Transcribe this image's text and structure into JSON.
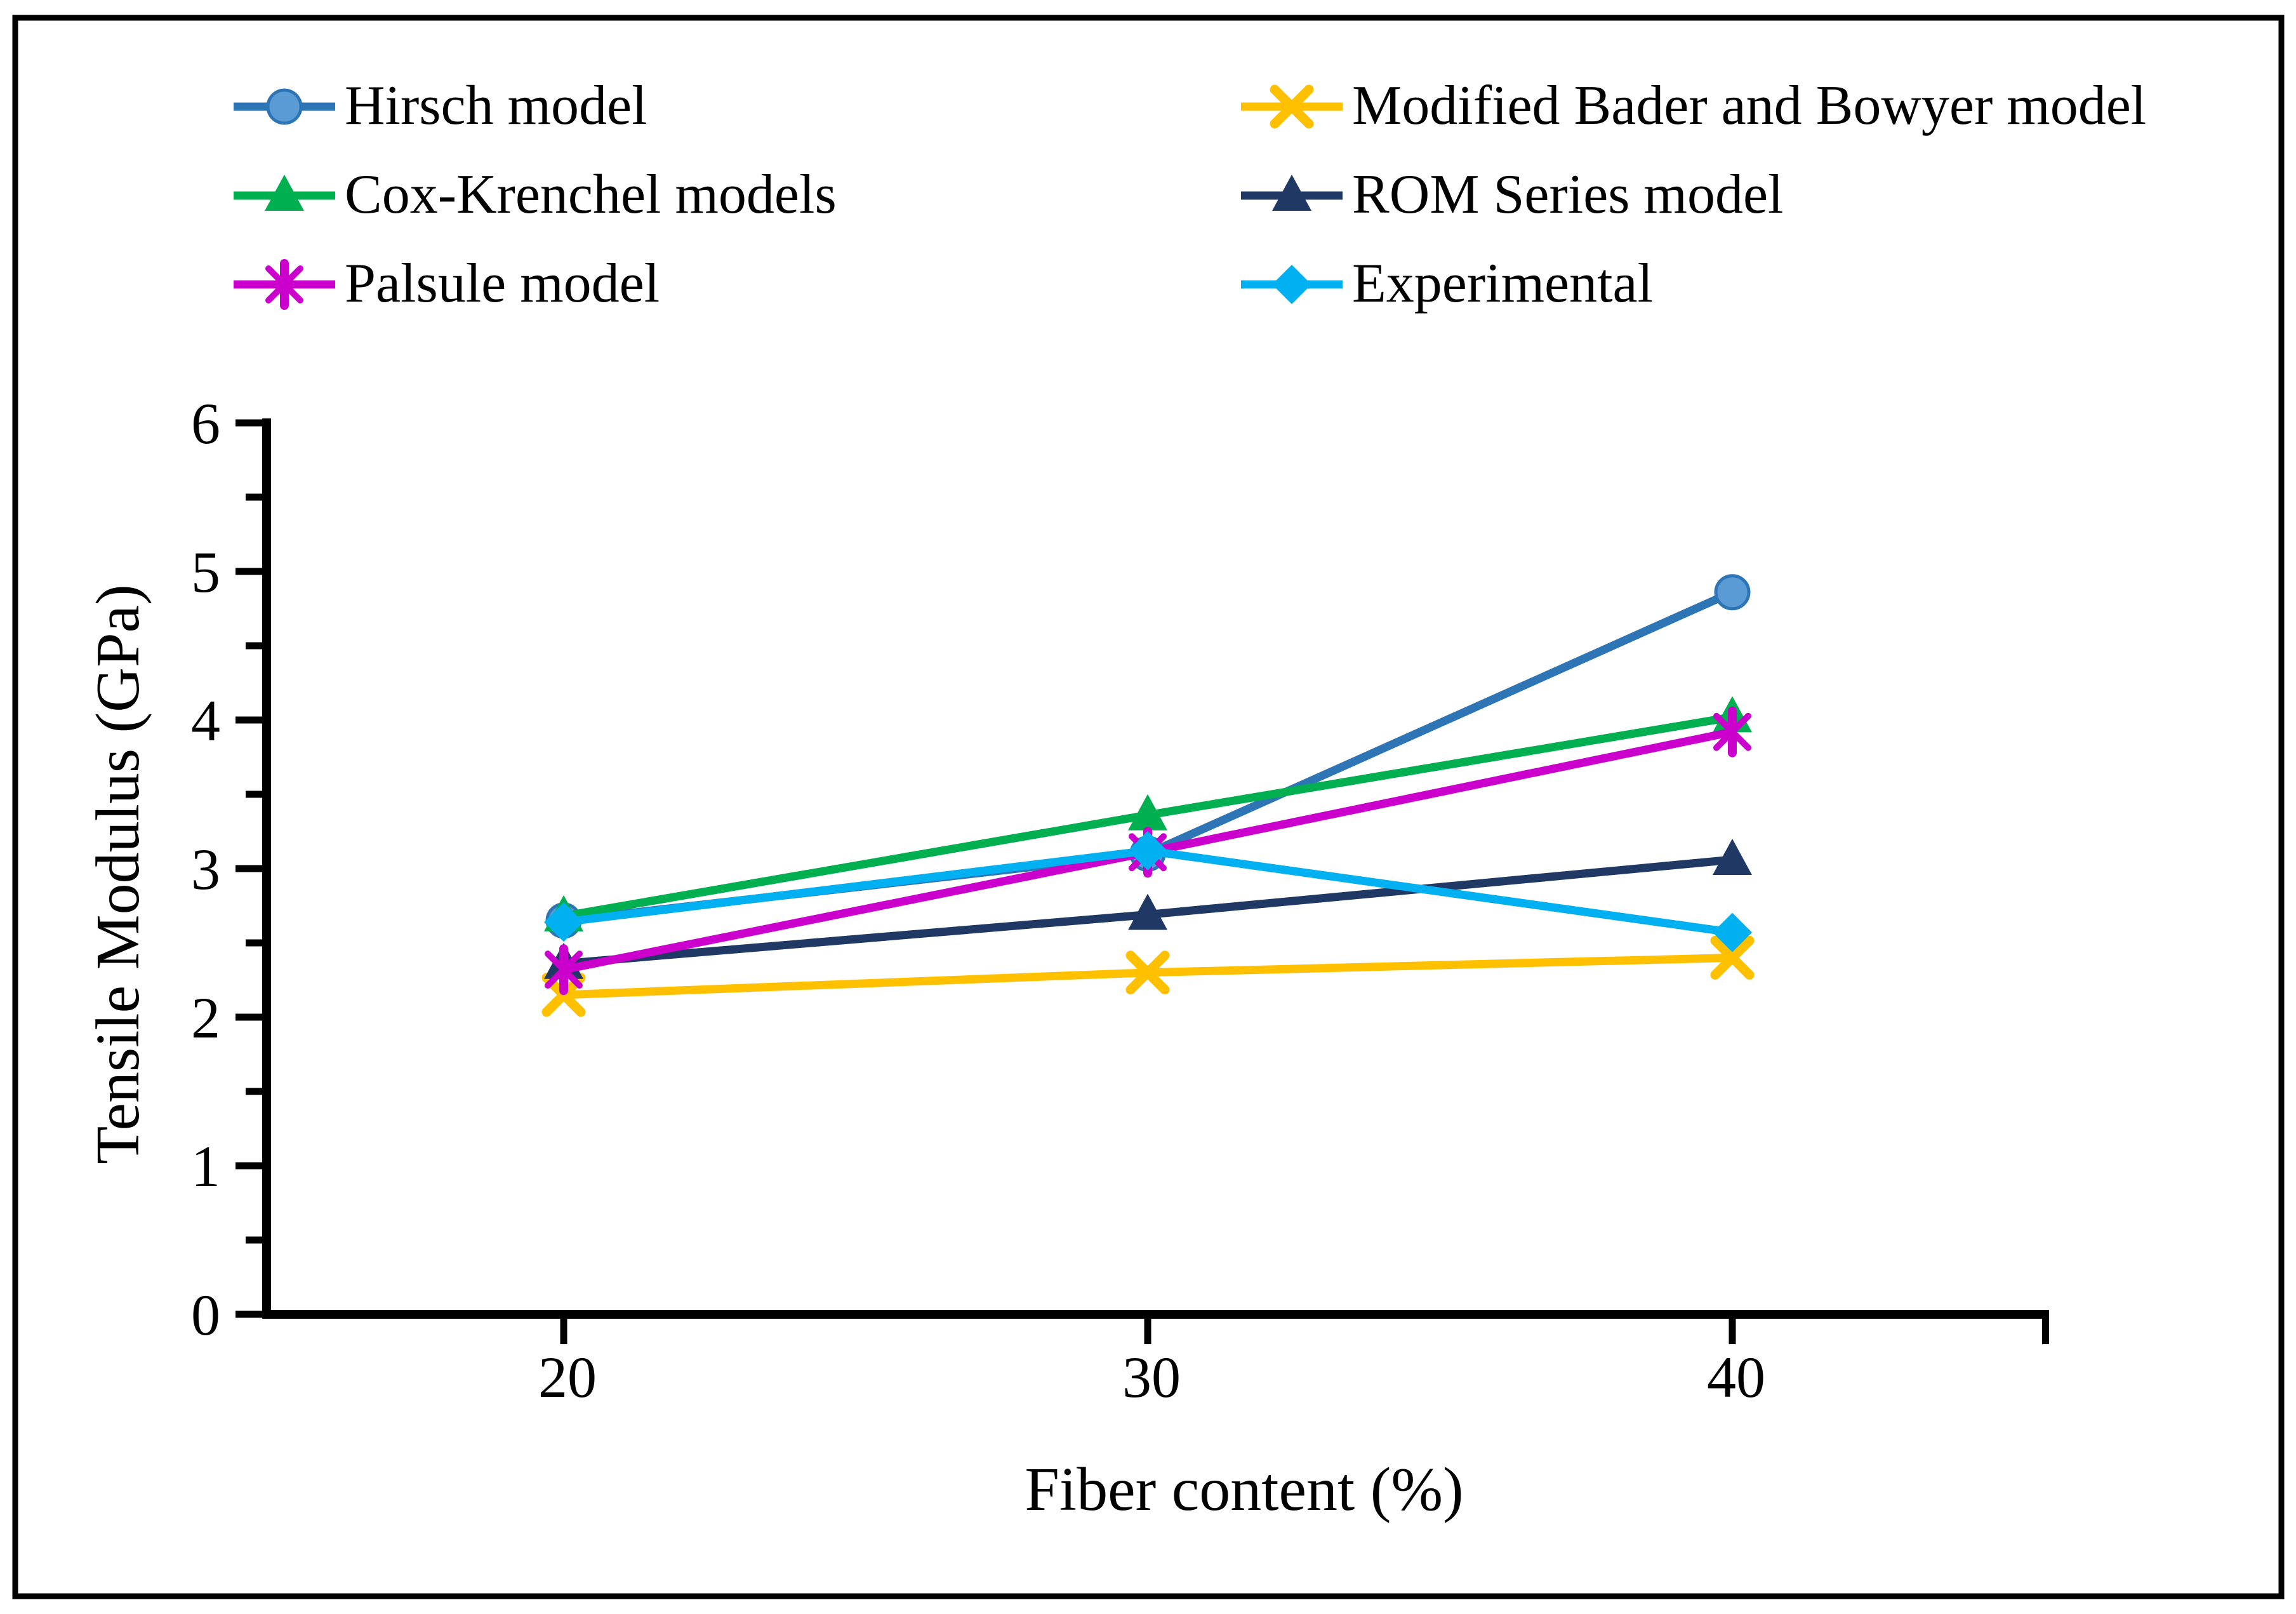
{
  "figure": {
    "background": "#ffffff",
    "border_color": "#000000"
  },
  "chart_data": {
    "type": "line",
    "title": "",
    "xlabel": "Fiber content (%)",
    "ylabel": "Tensile Modulus (GPa)",
    "categories": [
      "20",
      "30",
      "40"
    ],
    "y_ticks": [
      0,
      1,
      2,
      3,
      4,
      5,
      6
    ],
    "ylim": [
      0,
      6
    ],
    "y_major_unit": 1,
    "y_minor_unit": 0.5,
    "grid": false,
    "legend_position": "top-two-columns",
    "series": [
      {
        "name": "Hirsch model",
        "marker": "circle",
        "color": "#2E75B6",
        "marker_color": "#5B9BD5",
        "values": [
          2.65,
          3.1,
          4.86
        ]
      },
      {
        "name": "Modified Bader and Bowyer model",
        "marker": "x",
        "color": "#FFC000",
        "marker_color": "#FFC000",
        "values": [
          2.15,
          2.3,
          2.4
        ]
      },
      {
        "name": "Cox-Krenchel models",
        "marker": "triangle",
        "color": "#00B050",
        "marker_color": "#00B050",
        "values": [
          2.68,
          3.36,
          4.02
        ]
      },
      {
        "name": "ROM Series model",
        "marker": "triangle",
        "color": "#1F3864",
        "marker_color": "#1F3864",
        "values": [
          2.36,
          2.69,
          3.06
        ]
      },
      {
        "name": "Palsule model",
        "marker": "asterisk",
        "color": "#CC00CC",
        "marker_color": "#CC00CC",
        "values": [
          2.32,
          3.11,
          3.92
        ]
      },
      {
        "name": "Experimental",
        "marker": "diamond",
        "color": "#00B0F0",
        "marker_color": "#00B0F0",
        "values": [
          2.64,
          3.12,
          2.57
        ]
      }
    ]
  }
}
